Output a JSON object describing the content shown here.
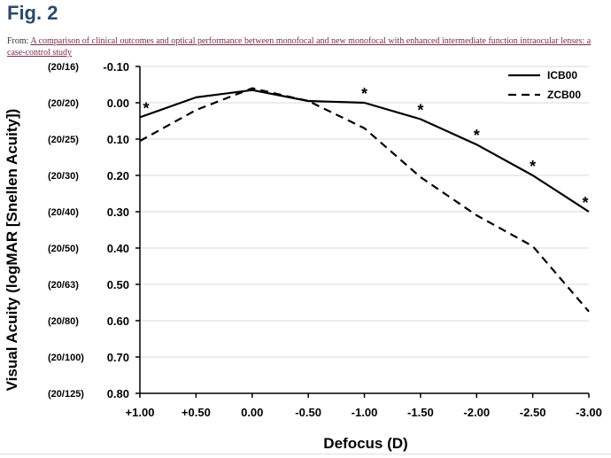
{
  "page": {
    "figure_title": "Fig. 2",
    "from_prefix": "From: ",
    "from_link_text": "A comparison of clinical outcomes and optical performance between monofocal and new monofocal with enhanced intermediate function intraocular lenses: a case-control study"
  },
  "chart_data": {
    "type": "line",
    "xlabel": "Defocus (D)",
    "ylabel": "Visual Acuity (logMAR [Snellen Acuity])",
    "x": [
      1.0,
      0.5,
      0.0,
      -0.5,
      -1.0,
      -1.5,
      -2.0,
      -2.5,
      -3.0
    ],
    "x_tick_labels": [
      "+1.00",
      "+0.50",
      "0.00",
      "-0.50",
      "-1.00",
      "-1.50",
      "-2.00",
      "-2.50",
      "-3.00"
    ],
    "xlim": [
      1.0,
      -3.0
    ],
    "ylim": [
      -0.1,
      0.8
    ],
    "y_inverted": true,
    "y_ticks": [
      -0.1,
      0.0,
      0.1,
      0.2,
      0.3,
      0.4,
      0.5,
      0.6,
      0.7,
      0.8
    ],
    "y_tick_labels": [
      "-0.10",
      "0.00",
      "0.10",
      "0.20",
      "0.30",
      "0.40",
      "0.50",
      "0.60",
      "0.70",
      "0.80"
    ],
    "snellen_labels": [
      "(20/16)",
      "(20/20)",
      "(20/25)",
      "(20/30)",
      "(20/40)",
      "(20/50)",
      "(20/63)",
      "(20/80)",
      "(20/100)",
      "(20/125)"
    ],
    "grid": true,
    "legend_position": "top-right",
    "series": [
      {
        "name": "ICB00",
        "style": "solid",
        "color": "#000000",
        "values": [
          0.04,
          -0.015,
          -0.035,
          -0.005,
          0.0,
          0.045,
          0.115,
          0.2,
          0.3
        ]
      },
      {
        "name": "ZCB00",
        "style": "dashed",
        "color": "#000000",
        "values": [
          0.105,
          0.02,
          -0.04,
          -0.005,
          0.07,
          0.205,
          0.31,
          0.395,
          0.575
        ]
      }
    ],
    "significance_marker": "*",
    "significance_x": [
      1.0,
      -1.0,
      -1.5,
      -2.0,
      -2.5,
      -3.0
    ]
  }
}
